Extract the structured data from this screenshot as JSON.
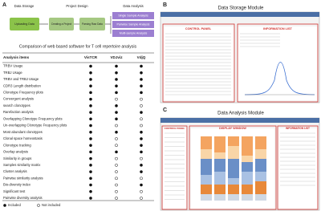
{
  "panel_a": {
    "letter": "A",
    "stages": [
      "Data Storage",
      "Project Design",
      "Data Analysis"
    ],
    "steps": [
      "Uploading Data",
      "Creating a Project",
      "Parsing Raw Data"
    ],
    "analyses": [
      "Single Sample Analysis",
      "Pairwise Sample Analysis",
      "Multi-sample Analysis"
    ],
    "table_title": "Comparison of web based software for T cell repertoire analysis",
    "columns": [
      "Analysis items",
      "VisTCR",
      "VDJviz",
      "VdjQ"
    ],
    "rows": [
      {
        "item": "TRBV Usage",
        "included": [
          true,
          true,
          true
        ]
      },
      {
        "item": "TRBJ Usage",
        "included": [
          true,
          true,
          true
        ]
      },
      {
        "item": "TRBV and TRBJ Usage",
        "included": [
          true,
          true,
          true
        ]
      },
      {
        "item": "CDR3 Length distribution",
        "included": [
          true,
          true,
          true
        ]
      },
      {
        "item": "Clonotype Frequency plots",
        "included": [
          true,
          true,
          true
        ]
      },
      {
        "item": "Convergent analysis",
        "included": [
          true,
          false,
          false
        ]
      },
      {
        "item": "search clonotypes",
        "included": [
          true,
          true,
          false
        ]
      },
      {
        "item": "Rarefaction analysis",
        "included": [
          true,
          true,
          true
        ]
      },
      {
        "item": "Overlapping Clonotype Frequency plots",
        "included": [
          true,
          true,
          false
        ]
      },
      {
        "item": "Un-overlapping Clonotype Frequency plots",
        "included": [
          true,
          false,
          false
        ]
      },
      {
        "item": "Most abundant clonotypes",
        "included": [
          true,
          true,
          true
        ]
      },
      {
        "item": "Clonal space homeostasis",
        "included": [
          true,
          false,
          true
        ]
      },
      {
        "item": "Clonotype tracking",
        "included": [
          true,
          false,
          true
        ]
      },
      {
        "item": "Overlap analysis",
        "included": [
          true,
          true,
          true
        ]
      },
      {
        "item": "Similarity in groups",
        "included": [
          true,
          false,
          false
        ]
      },
      {
        "item": "Samples similarity matrix",
        "included": [
          true,
          false,
          true
        ]
      },
      {
        "item": "Cluster analysis",
        "included": [
          true,
          false,
          true
        ]
      },
      {
        "item": "Pairwise similarity analysis",
        "included": [
          true,
          false,
          false
        ]
      },
      {
        "item": "Bio-diversity index",
        "included": [
          true,
          false,
          true
        ]
      },
      {
        "item": "Significant test",
        "included": [
          true,
          false,
          false
        ]
      },
      {
        "item": "Pairwise diversity analysis",
        "included": [
          true,
          false,
          false
        ]
      }
    ],
    "legend": [
      "Included",
      "Not included"
    ]
  },
  "panel_b": {
    "letter": "B",
    "title": "Data Storage Module",
    "regions": [
      "CONTROL PANEL",
      "INFORMATION LIST"
    ]
  },
  "panel_c": {
    "letter": "C",
    "title": "Data Analysis Module",
    "regions": [
      "CONTROL PANEL",
      "DISPLAY WINDOW",
      "INFORMATION LIST"
    ]
  }
}
